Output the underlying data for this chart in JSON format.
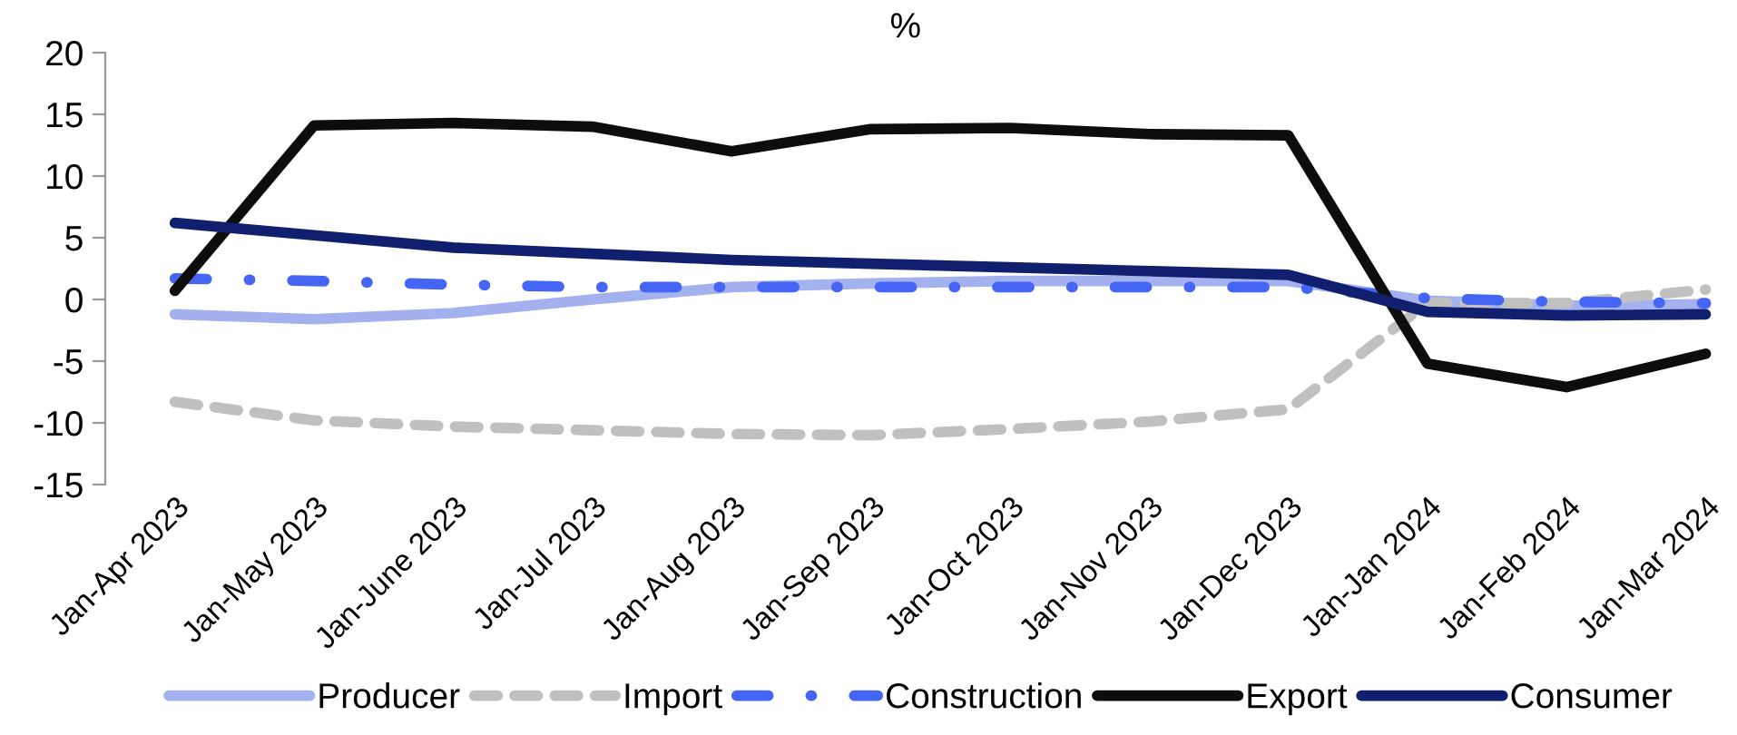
{
  "chart_data": {
    "type": "line",
    "title": "%",
    "categories": [
      "Jan-Apr 2023",
      "Jan-May 2023",
      "Jan-June 2023",
      "Jan-Jul 2023",
      "Jan-Aug 2023",
      "Jan-Sep 2023",
      "Jan-Oct 2023",
      "Jan-Nov 2023",
      "Jan-Dec 2023",
      "Jan-Jan 2024",
      "Jan-Feb 2024",
      "Jan-Mar 2024"
    ],
    "series": [
      {
        "name": "Producer",
        "color": "#a3b1ee",
        "line_style": "solid",
        "values": [
          -1.2,
          -1.6,
          -1.1,
          0.0,
          1.0,
          1.3,
          1.5,
          1.5,
          1.5,
          -0.1,
          -0.5,
          -0.4
        ]
      },
      {
        "name": "Import",
        "color": "#c0c0c0",
        "line_style": "dashed",
        "values": [
          -8.3,
          -9.8,
          -10.3,
          -10.6,
          -10.9,
          -11.0,
          -10.5,
          -9.9,
          -8.9,
          -0.3,
          -0.3,
          0.8
        ]
      },
      {
        "name": "Construction",
        "color": "#4565f5",
        "line_style": "dashdot",
        "values": [
          1.7,
          1.5,
          1.2,
          1.0,
          1.0,
          1.0,
          1.0,
          1.0,
          1.0,
          0.1,
          -0.2,
          -0.3
        ]
      },
      {
        "name": "Export",
        "color": "#0d0d0d",
        "line_style": "solid",
        "values": [
          0.7,
          14.1,
          14.3,
          14.0,
          12.0,
          13.8,
          13.9,
          13.4,
          13.3,
          -5.2,
          -7.1,
          -4.4
        ]
      },
      {
        "name": "Consumer",
        "color": "#10206e",
        "line_style": "solid",
        "values": [
          6.2,
          5.2,
          4.2,
          3.7,
          3.2,
          2.9,
          2.6,
          2.3,
          2.0,
          -1.0,
          -1.3,
          -1.2
        ]
      }
    ],
    "ylim": [
      -15,
      20
    ],
    "yticks": [
      -15,
      -10,
      -5,
      0,
      5,
      10,
      15,
      20
    ],
    "grid": false,
    "legend": "bottom",
    "marker": "none"
  }
}
